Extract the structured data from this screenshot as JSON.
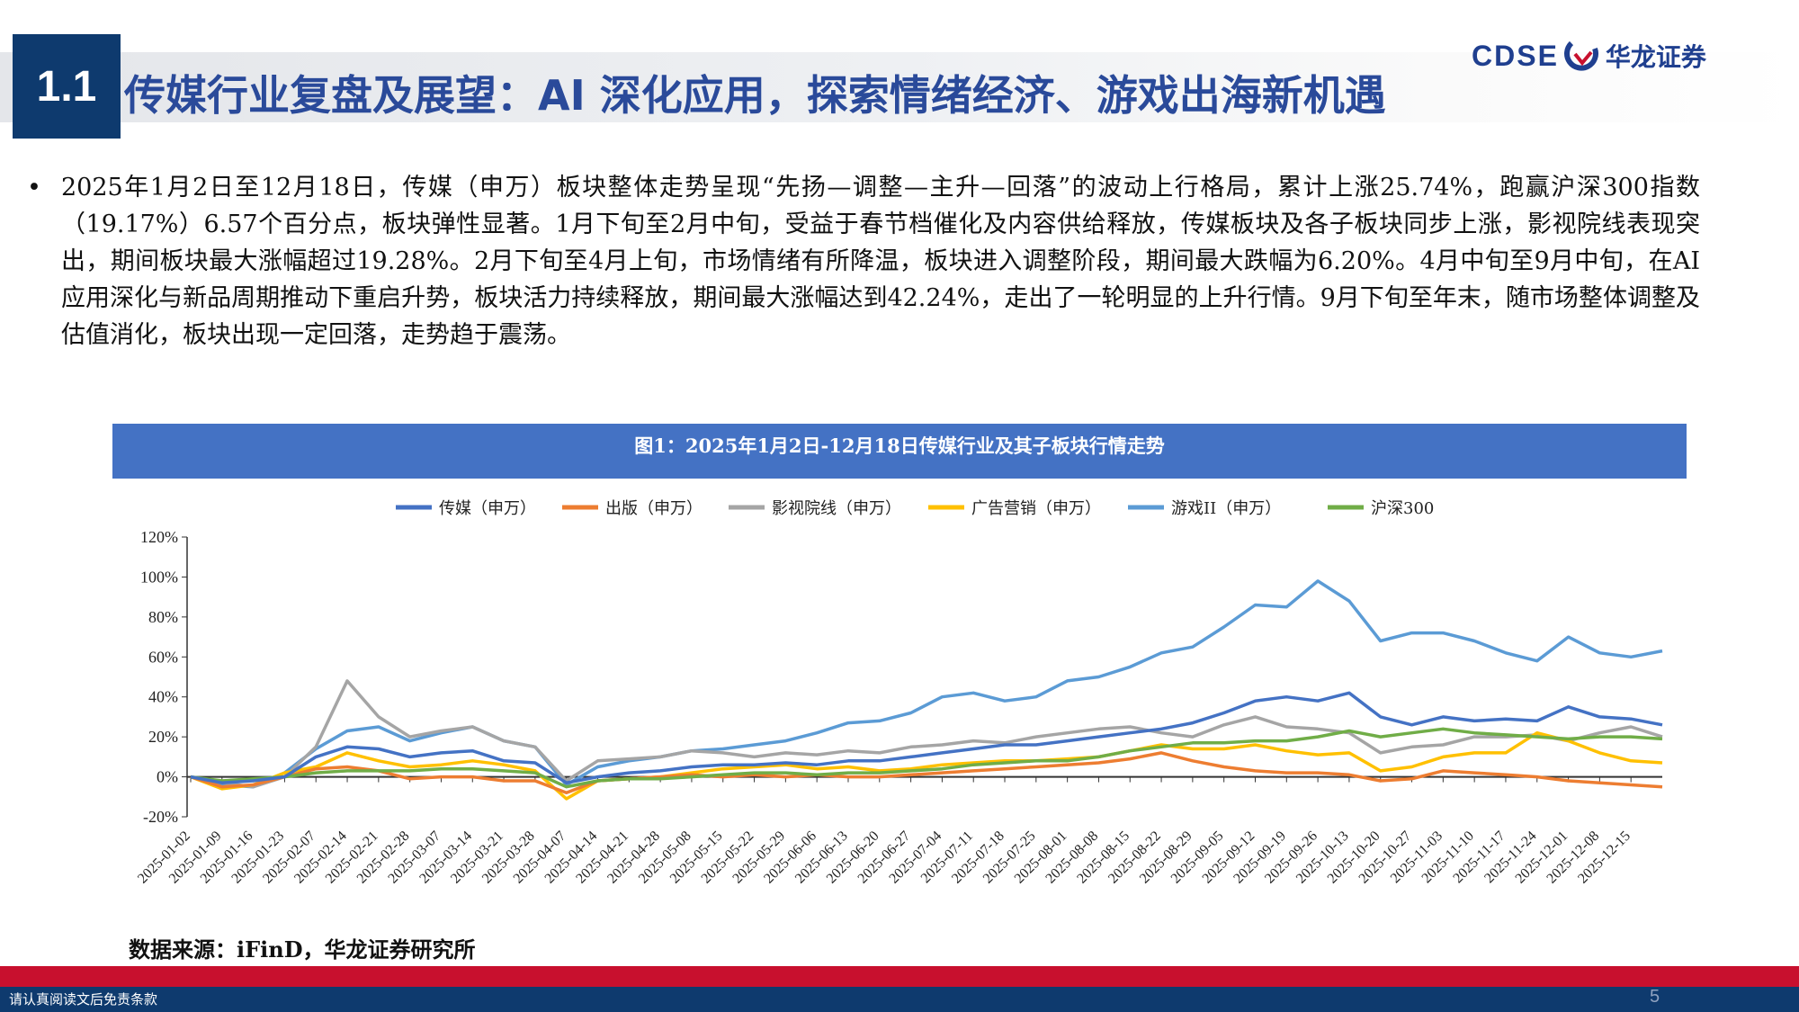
{
  "header": {
    "section_number": "1.1",
    "title": "传媒行业复盘及展望：AI 深化应用，探索情绪经济、游戏出海新机遇",
    "logo_en": "CDSE",
    "logo_cn": "华龙证券"
  },
  "body": {
    "bullet": "•",
    "text": "2025年1月2日至12月18日，传媒（申万）板块整体走势呈现“先扬—调整—主升—回落”的波动上行格局，累计上涨25.74%，跑赢沪深300指数（19.17%）6.57个百分点，板块弹性显著。1月下旬至2月中旬，受益于春节档催化及内容供给释放，传媒板块及各子板块同步上涨，影视院线表现突出，期间板块最大涨幅超过19.28%。2月下旬至4月上旬，市场情绪有所降温，板块进入调整阶段，期间最大跌幅为6.20%。4月中旬至9月中旬，在AI应用深化与新品周期推动下重启升势，板块活力持续释放，期间最大涨幅达到42.24%，走出了一轮明显的上升行情。9月下旬至年末，随市场整体调整及估值消化，板块出现一定回落，走势趋于震荡。"
  },
  "chart_header": "图1：2025年1月2日-12月18日传媒行业及其子板块行情走势",
  "chart_data": {
    "type": "line",
    "title": "图1：2025年1月2日-12月18日传媒行业及其子板块行情走势",
    "xlabel": "",
    "ylabel": "",
    "ylim": [
      -20,
      120
    ],
    "yticks": [
      "120%",
      "100%",
      "80%",
      "60%",
      "40%",
      "20%",
      "0%",
      "-20%"
    ],
    "ytick_values": [
      120,
      100,
      80,
      60,
      40,
      20,
      0,
      -20
    ],
    "legend_position": "top",
    "grid": false,
    "x": [
      "2025-01-02",
      "2025-01-09",
      "2025-01-16",
      "2025-01-23",
      "2025-02-07",
      "2025-02-14",
      "2025-02-21",
      "2025-02-28",
      "2025-03-07",
      "2025-03-14",
      "2025-03-21",
      "2025-03-28",
      "2025-04-07",
      "2025-04-14",
      "2025-04-21",
      "2025-04-28",
      "2025-05-08",
      "2025-05-15",
      "2025-05-22",
      "2025-05-29",
      "2025-06-06",
      "2025-06-13",
      "2025-06-20",
      "2025-06-27",
      "2025-07-04",
      "2025-07-11",
      "2025-07-18",
      "2025-07-25",
      "2025-08-01",
      "2025-08-08",
      "2025-08-15",
      "2025-08-22",
      "2025-08-29",
      "2025-09-05",
      "2025-09-12",
      "2025-09-19",
      "2025-09-26",
      "2025-10-13",
      "2025-10-20",
      "2025-10-27",
      "2025-11-03",
      "2025-11-10",
      "2025-11-17",
      "2025-11-24",
      "2025-12-01",
      "2025-12-08",
      "2025-12-15",
      "2025-12-18"
    ],
    "xtick_labels": [
      "2025-01-02",
      "2025-01-09",
      "2025-01-16",
      "2025-01-23",
      "2025-02-07",
      "2025-02-14",
      "2025-02-21",
      "2025-02-28",
      "2025-03-07",
      "2025-03-14",
      "2025-03-21",
      "2025-03-28",
      "2025-04-07",
      "2025-04-14",
      "2025-04-21",
      "2025-04-28",
      "2025-05-08",
      "2025-05-15",
      "2025-05-22",
      "2025-05-29",
      "2025-06-06",
      "2025-06-13",
      "2025-06-20",
      "2025-06-27",
      "2025-07-04",
      "2025-07-11",
      "2025-07-18",
      "2025-07-25",
      "2025-08-01",
      "2025-08-08",
      "2025-08-15",
      "2025-08-22",
      "2025-08-29",
      "2025-09-05",
      "2025-09-12",
      "2025-09-19",
      "2025-09-26",
      "2025-10-13",
      "2025-10-20",
      "2025-10-27",
      "2025-11-03",
      "2025-11-10",
      "2025-11-17",
      "2025-11-24",
      "2025-12-01",
      "2025-12-08",
      "2025-12-15"
    ],
    "series": [
      {
        "name": "传媒（申万）",
        "color": "#4472c4",
        "values": [
          0,
          -3,
          -2,
          0,
          10,
          15,
          14,
          10,
          12,
          13,
          8,
          7,
          -3,
          0,
          2,
          3,
          5,
          6,
          6,
          7,
          6,
          8,
          8,
          10,
          12,
          14,
          16,
          16,
          18,
          20,
          22,
          24,
          27,
          32,
          38,
          40,
          38,
          42,
          30,
          26,
          30,
          28,
          29,
          28,
          35,
          30,
          29,
          26
        ]
      },
      {
        "name": "出版（申万）",
        "color": "#ed7d31",
        "values": [
          0,
          -5,
          -4,
          0,
          4,
          5,
          3,
          -1,
          0,
          0,
          -2,
          -2,
          -8,
          -2,
          -1,
          0,
          1,
          0,
          1,
          0,
          1,
          0,
          0,
          1,
          2,
          3,
          4,
          5,
          6,
          7,
          9,
          12,
          8,
          5,
          3,
          2,
          2,
          1,
          -2,
          -1,
          3,
          2,
          1,
          0,
          -2,
          -3,
          -4,
          -5
        ]
      },
      {
        "name": "影视院线（申万）",
        "color": "#a5a5a5",
        "values": [
          0,
          -3,
          -5,
          0,
          15,
          48,
          30,
          20,
          23,
          25,
          18,
          15,
          -2,
          8,
          9,
          10,
          13,
          12,
          10,
          12,
          11,
          13,
          12,
          15,
          16,
          18,
          17,
          20,
          22,
          24,
          25,
          22,
          20,
          26,
          30,
          25,
          24,
          22,
          12,
          15,
          16,
          20,
          20,
          21,
          18,
          22,
          25,
          20
        ]
      },
      {
        "name": "广告营销（申万）",
        "color": "#ffc000",
        "values": [
          0,
          -6,
          -4,
          2,
          5,
          12,
          8,
          5,
          6,
          8,
          6,
          3,
          -11,
          -2,
          -1,
          0,
          2,
          4,
          5,
          6,
          4,
          5,
          3,
          4,
          6,
          7,
          8,
          8,
          9,
          10,
          13,
          16,
          14,
          14,
          16,
          13,
          11,
          12,
          3,
          5,
          10,
          12,
          12,
          22,
          18,
          12,
          8,
          7
        ]
      },
      {
        "name": "游戏II（申万）",
        "color": "#5b9bd5",
        "values": [
          0,
          -4,
          -5,
          2,
          14,
          23,
          25,
          18,
          22,
          25,
          18,
          15,
          -4,
          5,
          8,
          10,
          13,
          14,
          16,
          18,
          22,
          27,
          28,
          32,
          40,
          42,
          38,
          40,
          48,
          50,
          55,
          62,
          65,
          75,
          86,
          85,
          98,
          88,
          68,
          72,
          72,
          68,
          62,
          58,
          70,
          62,
          60,
          63
        ]
      },
      {
        "name": "沪深300",
        "color": "#70ad47",
        "values": [
          0,
          -2,
          -1,
          0,
          2,
          3,
          3,
          3,
          4,
          4,
          3,
          2,
          -5,
          -2,
          -1,
          -1,
          0,
          1,
          2,
          2,
          1,
          2,
          2,
          3,
          4,
          6,
          7,
          8,
          8,
          10,
          13,
          15,
          17,
          17,
          18,
          18,
          20,
          23,
          20,
          22,
          24,
          22,
          21,
          20,
          19,
          20,
          20,
          19
        ]
      }
    ]
  },
  "source": "数据来源：iFinD，华龙证券研究所",
  "footer": {
    "disclaimer": "请认真阅读文后免责条款",
    "page": "5"
  },
  "colors": {
    "brand_navy": "#0e3a6e",
    "title_blue": "#2a4a9a",
    "footer_red": "#c8102e",
    "chart_header": "#4472c4"
  }
}
